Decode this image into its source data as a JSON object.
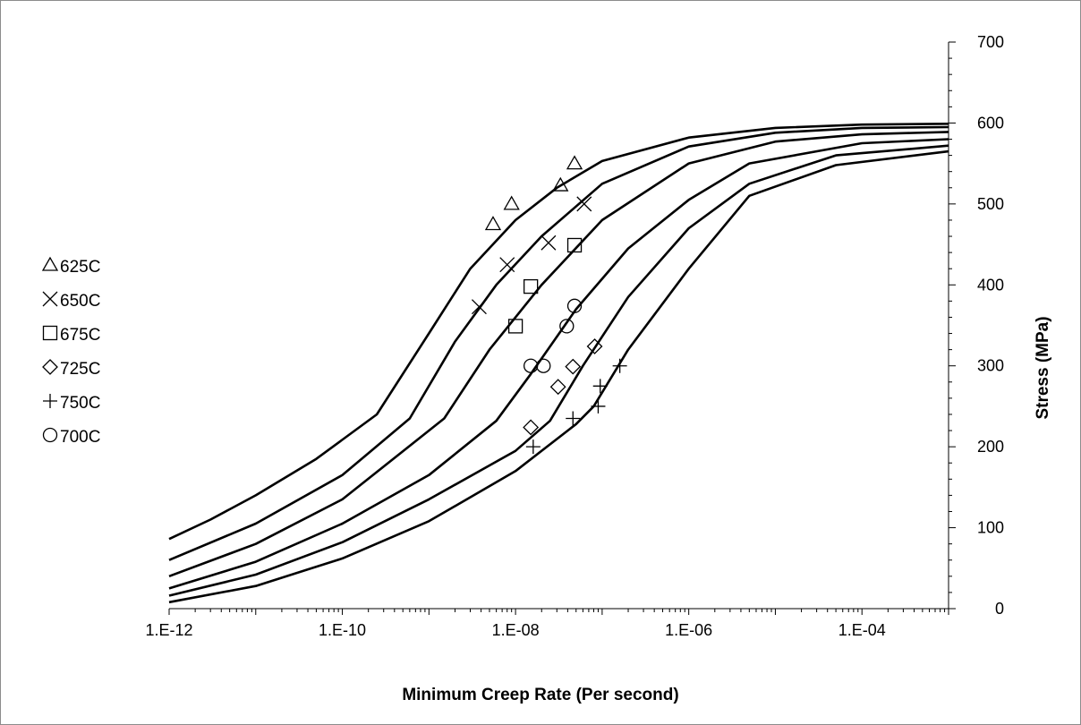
{
  "chart_data": {
    "type": "scatter",
    "title": "",
    "xlabel": "Minimum Creep Rate (Per second)",
    "ylabel": "Stress (MPa)",
    "x_scale": "log",
    "xlim": [
      1e-12,
      0.001
    ],
    "ylim": [
      0,
      700
    ],
    "x_tick_labels": [
      "1.E-12",
      "1.E-10",
      "1.E-08",
      "1.E-06",
      "1.E-04"
    ],
    "x_tick_values": [
      1e-12,
      1e-10,
      1e-08,
      1e-06,
      0.0001
    ],
    "y_tick_labels": [
      "0",
      "100",
      "200",
      "300",
      "400",
      "500",
      "600",
      "700"
    ],
    "y_tick_values": [
      0,
      100,
      200,
      300,
      400,
      500,
      600,
      700
    ],
    "y_axis_side": "right",
    "grid": false,
    "legend": "left",
    "series": [
      {
        "name": "625C",
        "marker": "triangle",
        "points": [
          [
            5.5e-09,
            475
          ],
          [
            9e-09,
            500
          ],
          [
            3.3e-08,
            523
          ],
          [
            4.8e-08,
            550
          ]
        ]
      },
      {
        "name": "650C",
        "marker": "x",
        "points": [
          [
            3.8e-09,
            373
          ],
          [
            8e-09,
            425
          ],
          [
            2.4e-08,
            452
          ],
          [
            6.2e-08,
            500
          ]
        ]
      },
      {
        "name": "675C",
        "marker": "square",
        "points": [
          [
            1e-08,
            349
          ],
          [
            1.5e-08,
            398
          ],
          [
            4.8e-08,
            449
          ]
        ]
      },
      {
        "name": "725C",
        "marker": "diamond",
        "points": [
          [
            1.5e-08,
            224
          ],
          [
            3.1e-08,
            274
          ],
          [
            4.6e-08,
            299
          ],
          [
            8.2e-08,
            324
          ]
        ]
      },
      {
        "name": "750C",
        "marker": "plus",
        "points": [
          [
            1.6e-08,
            200
          ],
          [
            4.6e-08,
            235
          ],
          [
            9e-08,
            250
          ],
          [
            9.5e-08,
            275
          ],
          [
            1.6e-07,
            300
          ]
        ]
      },
      {
        "name": "700C",
        "marker": "circle",
        "points": [
          [
            1.5e-08,
            300
          ],
          [
            2.1e-08,
            300
          ],
          [
            3.9e-08,
            349
          ],
          [
            4.8e-08,
            374
          ]
        ]
      }
    ],
    "curves": [
      {
        "points": [
          [
            1e-12,
            86
          ],
          [
            3e-12,
            110
          ],
          [
            1e-11,
            140
          ],
          [
            5e-11,
            185
          ],
          [
            2.5e-10,
            240
          ],
          [
            1e-09,
            340
          ],
          [
            3e-09,
            420
          ],
          [
            1e-08,
            480
          ],
          [
            3e-08,
            520
          ],
          [
            1e-07,
            553
          ],
          [
            1e-06,
            582
          ],
          [
            1e-05,
            594
          ],
          [
            0.0001,
            598
          ],
          [
            0.001,
            599
          ]
        ]
      },
      {
        "points": [
          [
            1e-12,
            60
          ],
          [
            1e-11,
            105
          ],
          [
            1e-10,
            165
          ],
          [
            6e-10,
            235
          ],
          [
            2e-09,
            330
          ],
          [
            6e-09,
            400
          ],
          [
            2e-08,
            460
          ],
          [
            1e-07,
            525
          ],
          [
            1e-06,
            571
          ],
          [
            1e-05,
            588
          ],
          [
            0.0001,
            594
          ],
          [
            0.001,
            595
          ]
        ]
      },
      {
        "points": [
          [
            1e-12,
            40
          ],
          [
            1e-11,
            80
          ],
          [
            1e-10,
            135
          ],
          [
            1.5e-09,
            235
          ],
          [
            5e-09,
            320
          ],
          [
            2e-08,
            400
          ],
          [
            1e-07,
            480
          ],
          [
            1e-06,
            550
          ],
          [
            1e-05,
            577
          ],
          [
            0.0001,
            586
          ],
          [
            0.001,
            589
          ]
        ]
      },
      {
        "points": [
          [
            1e-12,
            25
          ],
          [
            1e-11,
            58
          ],
          [
            1e-10,
            105
          ],
          [
            1e-09,
            165
          ],
          [
            6e-09,
            232
          ],
          [
            1.5e-08,
            290
          ],
          [
            5e-08,
            370
          ],
          [
            2e-07,
            445
          ],
          [
            1e-06,
            505
          ],
          [
            5e-06,
            550
          ],
          [
            0.0001,
            575
          ],
          [
            0.001,
            580
          ]
        ]
      },
      {
        "points": [
          [
            1e-12,
            16
          ],
          [
            1e-11,
            42
          ],
          [
            1e-10,
            82
          ],
          [
            1e-09,
            135
          ],
          [
            1e-08,
            195
          ],
          [
            2.5e-08,
            232
          ],
          [
            6e-08,
            300
          ],
          [
            2e-07,
            385
          ],
          [
            1e-06,
            470
          ],
          [
            5e-06,
            525
          ],
          [
            5e-05,
            560
          ],
          [
            0.001,
            572
          ]
        ]
      },
      {
        "points": [
          [
            1e-12,
            8
          ],
          [
            1e-11,
            28
          ],
          [
            1e-10,
            62
          ],
          [
            1e-09,
            108
          ],
          [
            1e-08,
            170
          ],
          [
            5e-08,
            228
          ],
          [
            8e-08,
            250
          ],
          [
            2e-07,
            320
          ],
          [
            1e-06,
            420
          ],
          [
            5e-06,
            510
          ],
          [
            5e-05,
            548
          ],
          [
            0.001,
            565
          ]
        ]
      }
    ]
  }
}
